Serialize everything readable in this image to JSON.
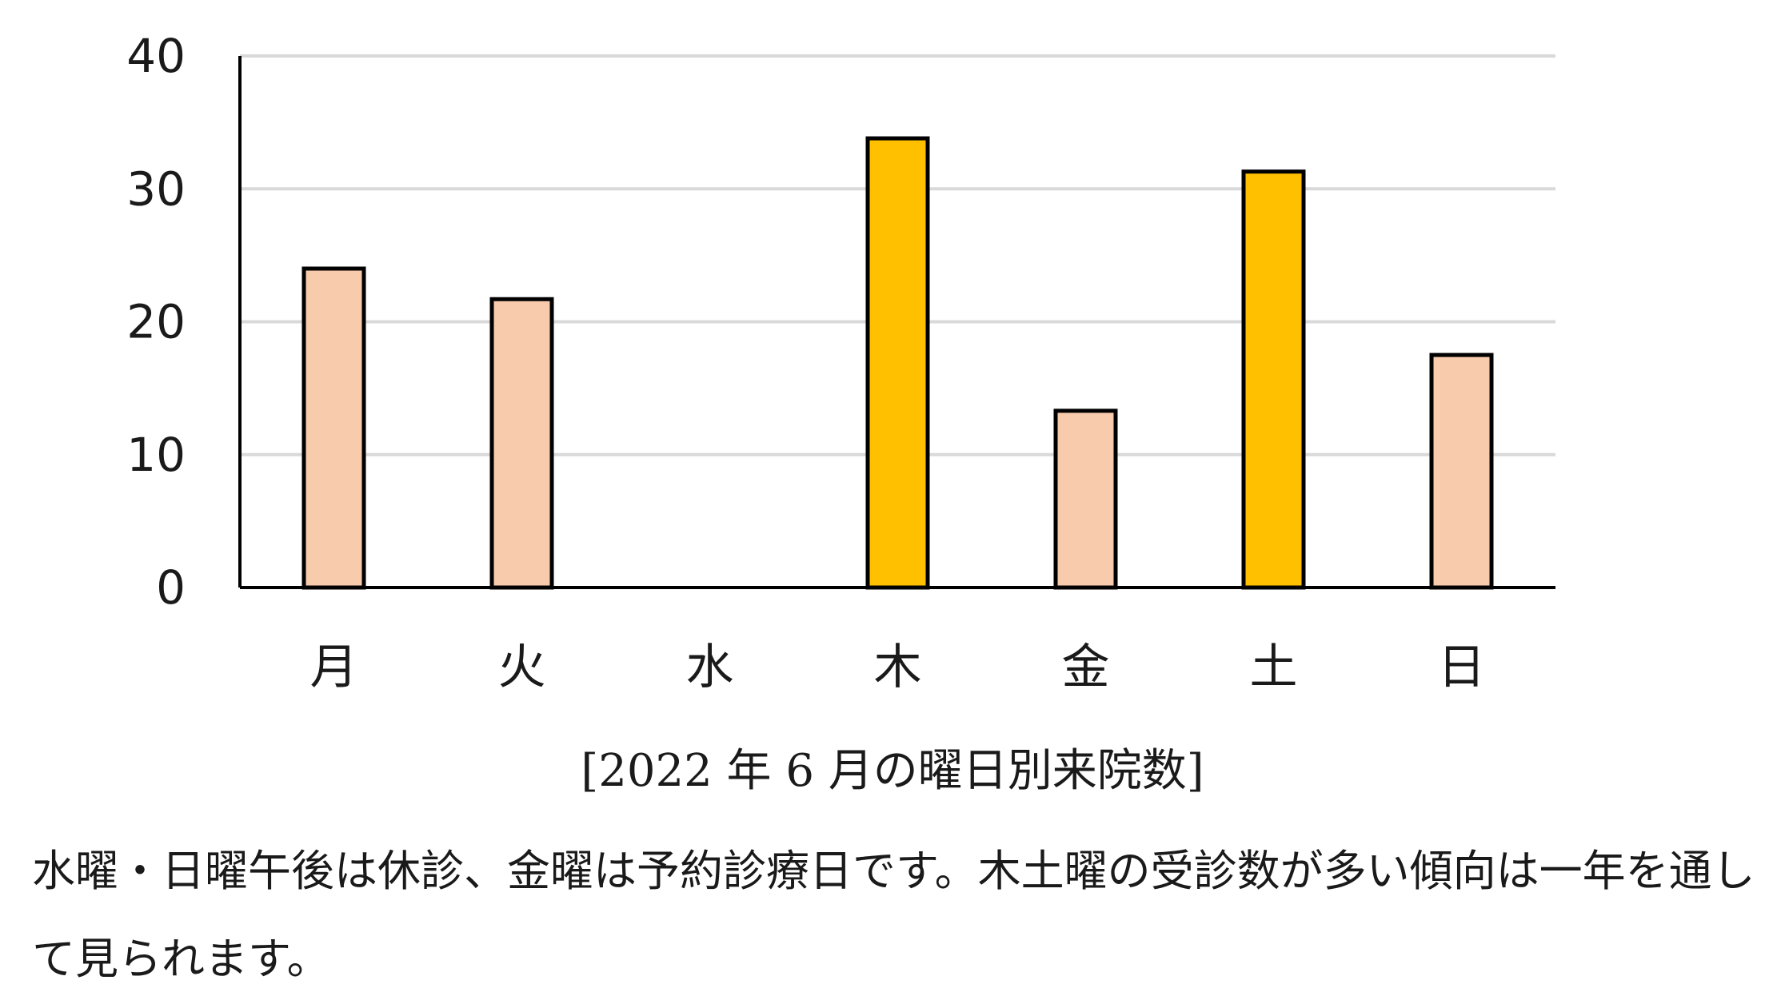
{
  "chart_data": {
    "type": "bar",
    "categories": [
      "月",
      "火",
      "水",
      "木",
      "金",
      "土",
      "日"
    ],
    "values": [
      24,
      21.7,
      0,
      33.8,
      13.3,
      31.3,
      17.5
    ],
    "highlight": [
      false,
      false,
      false,
      true,
      false,
      true,
      false
    ],
    "ylim": [
      0,
      40
    ],
    "yticks": [
      "0",
      "10",
      "20",
      "30",
      "40"
    ],
    "grid": true,
    "colors": {
      "normal": "#F8CBAD",
      "highlight": "#FFC000",
      "outline": "#000000",
      "grid": "#D9D9D9",
      "axis": "#000000"
    }
  },
  "caption": "[2022 年 6 月の曜日別来院数]",
  "note": "水曜・日曜午後は休診、金曜は予約診療日です。木土曜の受診数が多い傾向は一年を通して見られます。"
}
